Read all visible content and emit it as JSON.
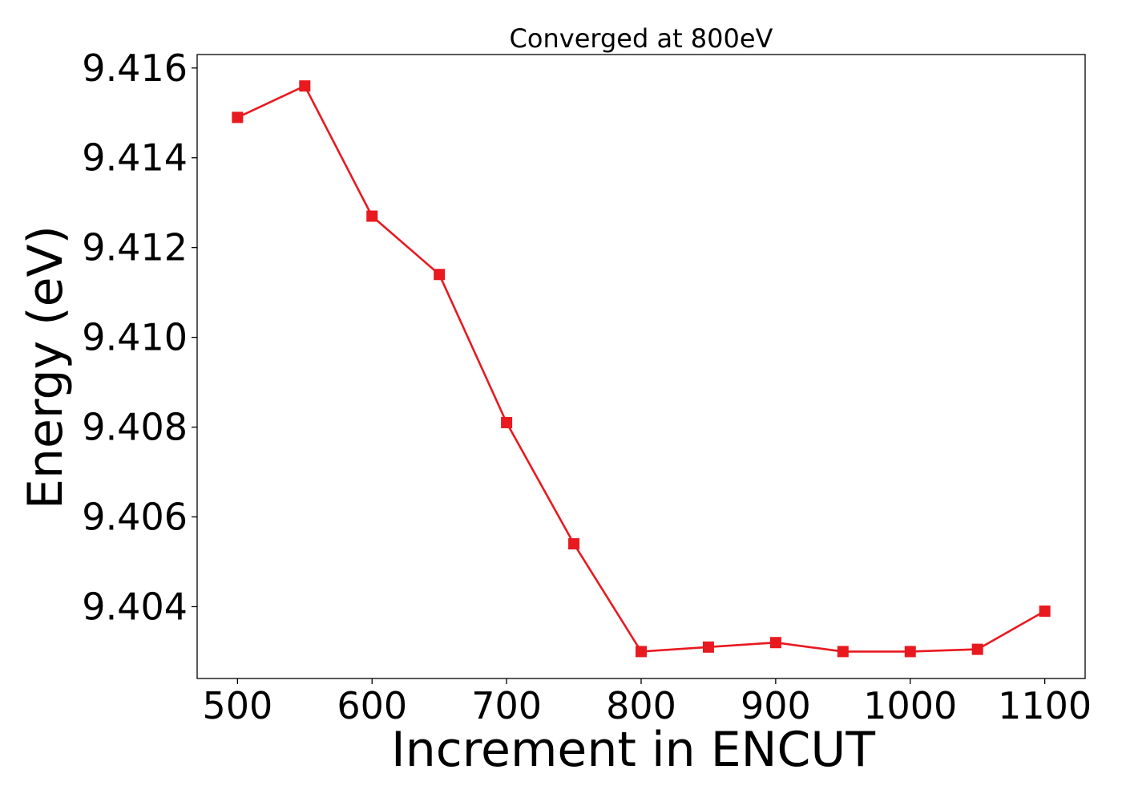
{
  "chart_data": {
    "type": "line",
    "title": "Converged at 800eV",
    "xlabel": "Increment in ENCUT",
    "ylabel": "Energy (eV)",
    "xlim": [
      470,
      1130
    ],
    "ylim": [
      9.4024,
      9.4163
    ],
    "xticks": [
      500,
      600,
      700,
      800,
      900,
      1000,
      1100
    ],
    "yticks": [
      9.404,
      9.406,
      9.408,
      9.41,
      9.412,
      9.414,
      9.416
    ],
    "ytick_labels": [
      "9.404",
      "9.406",
      "9.408",
      "9.410",
      "9.412",
      "9.414",
      "9.416"
    ],
    "grid": false,
    "series": [
      {
        "color": "#e8191f",
        "marker": "square",
        "x": [
          500,
          550,
          600,
          650,
          700,
          750,
          800,
          850,
          900,
          950,
          1000,
          1050,
          1100
        ],
        "y": [
          9.4149,
          9.4156,
          9.4127,
          9.4114,
          9.4081,
          9.4054,
          9.403,
          9.4031,
          9.4032,
          9.403,
          9.403,
          9.40305,
          9.4039
        ]
      }
    ]
  }
}
